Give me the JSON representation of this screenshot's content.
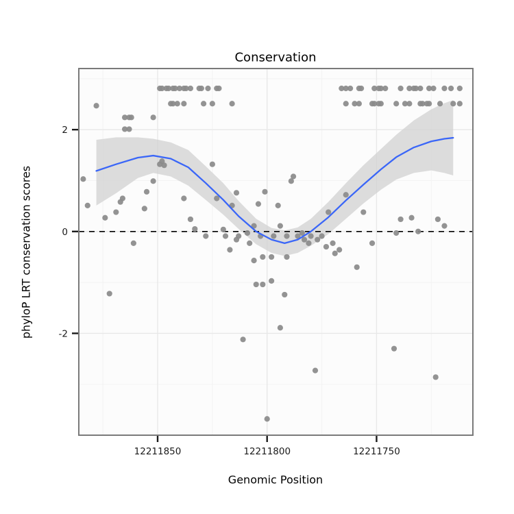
{
  "chart_data": {
    "type": "scatter",
    "title": "Conservation",
    "xlabel": "Genomic Position",
    "ylabel": "phyloP LRT conservation scores",
    "x_domain": [
      12211886,
      12211706
    ],
    "y_domain": [
      -4.0,
      3.2
    ],
    "x_ticks": [
      12211850,
      12211800,
      12211750
    ],
    "x_tick_labels": [
      "12211850",
      "12211800",
      "12211750"
    ],
    "x_minor_ticks": [
      12211875,
      12211825,
      12211775,
      12211725
    ],
    "y_ticks": [
      2,
      0,
      -2
    ],
    "y_tick_labels": [
      "2",
      "0",
      "-2"
    ],
    "y_minor_ticks": [
      -3,
      -1,
      1,
      3
    ],
    "hline": 0,
    "grid": true,
    "legend": "none",
    "colors": {
      "point": "#8a8a8a",
      "smooth_line": "#3a66f8",
      "ribbon": "#d2d2d2",
      "hline": "#000000",
      "panel_bg": "#fcfcfc",
      "grid_major": "#e8e8e8",
      "grid_minor": "#f3f3f3",
      "panel_border": "#7a7a7a",
      "tick": "#1a1a1a",
      "tick_label": "#1a1a1a"
    },
    "points": [
      [
        12211849,
        2.81
      ],
      [
        12211848,
        2.81
      ],
      [
        12211846,
        2.81
      ],
      [
        12211845,
        2.81
      ],
      [
        12211843,
        2.81
      ],
      [
        12211842,
        2.81
      ],
      [
        12211840,
        2.81
      ],
      [
        12211838,
        2.81
      ],
      [
        12211837,
        2.81
      ],
      [
        12211835,
        2.81
      ],
      [
        12211831,
        2.81
      ],
      [
        12211830,
        2.81
      ],
      [
        12211827,
        2.81
      ],
      [
        12211823,
        2.81
      ],
      [
        12211822,
        2.81
      ],
      [
        12211766,
        2.81
      ],
      [
        12211764,
        2.81
      ],
      [
        12211762,
        2.81
      ],
      [
        12211758,
        2.81
      ],
      [
        12211757,
        2.81
      ],
      [
        12211751,
        2.81
      ],
      [
        12211749,
        2.81
      ],
      [
        12211748,
        2.81
      ],
      [
        12211746,
        2.81
      ],
      [
        12211739,
        2.81
      ],
      [
        12211735,
        2.81
      ],
      [
        12211733,
        2.81
      ],
      [
        12211732,
        2.81
      ],
      [
        12211730,
        2.81
      ],
      [
        12211726,
        2.81
      ],
      [
        12211724,
        2.81
      ],
      [
        12211719,
        2.81
      ],
      [
        12211716,
        2.81
      ],
      [
        12211712,
        2.81
      ],
      [
        12211878,
        2.47
      ],
      [
        12211844,
        2.51
      ],
      [
        12211843,
        2.51
      ],
      [
        12211841,
        2.51
      ],
      [
        12211838,
        2.51
      ],
      [
        12211829,
        2.51
      ],
      [
        12211825,
        2.51
      ],
      [
        12211816,
        2.51
      ],
      [
        12211764,
        2.51
      ],
      [
        12211760,
        2.51
      ],
      [
        12211758,
        2.51
      ],
      [
        12211752,
        2.51
      ],
      [
        12211751,
        2.51
      ],
      [
        12211749,
        2.51
      ],
      [
        12211748,
        2.51
      ],
      [
        12211741,
        2.51
      ],
      [
        12211737,
        2.51
      ],
      [
        12211735,
        2.51
      ],
      [
        12211730,
        2.51
      ],
      [
        12211729,
        2.51
      ],
      [
        12211727,
        2.51
      ],
      [
        12211726,
        2.51
      ],
      [
        12211721,
        2.51
      ],
      [
        12211715,
        2.51
      ],
      [
        12211712,
        2.51
      ],
      [
        12211865,
        2.24
      ],
      [
        12211863,
        2.24
      ],
      [
        12211862,
        2.24
      ],
      [
        12211852,
        2.24
      ],
      [
        12211865,
        2.01
      ],
      [
        12211863,
        2.01
      ],
      [
        12211884,
        1.03
      ],
      [
        12211882,
        0.51
      ],
      [
        12211874,
        0.27
      ],
      [
        12211872,
        -1.22
      ],
      [
        12211869,
        0.38
      ],
      [
        12211867,
        0.58
      ],
      [
        12211866,
        0.65
      ],
      [
        12211861,
        -0.23
      ],
      [
        12211856,
        0.45
      ],
      [
        12211855,
        0.78
      ],
      [
        12211852,
        0.99
      ],
      [
        12211849,
        1.32
      ],
      [
        12211848,
        1.38
      ],
      [
        12211847,
        1.3
      ],
      [
        12211838,
        0.65
      ],
      [
        12211835,
        0.24
      ],
      [
        12211833,
        0.05
      ],
      [
        12211828,
        -0.09
      ],
      [
        12211825,
        1.32
      ],
      [
        12211823,
        0.65
      ],
      [
        12211820,
        0.04
      ],
      [
        12211819,
        -0.09
      ],
      [
        12211817,
        -0.36
      ],
      [
        12211816,
        0.51
      ],
      [
        12211814,
        0.76
      ],
      [
        12211814,
        -0.16
      ],
      [
        12211813,
        -0.09
      ],
      [
        12211811,
        -2.12
      ],
      [
        12211809,
        -0.03
      ],
      [
        12211808,
        -0.23
      ],
      [
        12211806,
        0.11
      ],
      [
        12211806,
        -0.57
      ],
      [
        12211805,
        -1.04
      ],
      [
        12211804,
        0.54
      ],
      [
        12211803,
        -0.09
      ],
      [
        12211802,
        -0.5
      ],
      [
        12211802,
        -1.04
      ],
      [
        12211801,
        0.78
      ],
      [
        12211800,
        -3.68
      ],
      [
        12211798,
        -0.5
      ],
      [
        12211798,
        -0.97
      ],
      [
        12211797,
        -0.09
      ],
      [
        12211795,
        0.51
      ],
      [
        12211794,
        0.11
      ],
      [
        12211794,
        -1.89
      ],
      [
        12211792,
        -1.24
      ],
      [
        12211791,
        -0.5
      ],
      [
        12211791,
        -0.09
      ],
      [
        12211789,
        0.99
      ],
      [
        12211788,
        1.08
      ],
      [
        12211786,
        -0.09
      ],
      [
        12211784,
        -0.03
      ],
      [
        12211783,
        -0.16
      ],
      [
        12211781,
        -0.23
      ],
      [
        12211780,
        -0.09
      ],
      [
        12211778,
        -2.73
      ],
      [
        12211777,
        -0.16
      ],
      [
        12211775,
        -0.09
      ],
      [
        12211773,
        -0.3
      ],
      [
        12211772,
        0.38
      ],
      [
        12211770,
        -0.23
      ],
      [
        12211769,
        -0.43
      ],
      [
        12211767,
        -0.36
      ],
      [
        12211764,
        0.72
      ],
      [
        12211759,
        -0.7
      ],
      [
        12211756,
        0.38
      ],
      [
        12211752,
        -0.23
      ],
      [
        12211742,
        -2.3
      ],
      [
        12211741,
        -0.03
      ],
      [
        12211739,
        0.24
      ],
      [
        12211734,
        0.27
      ],
      [
        12211731,
        0.0
      ],
      [
        12211723,
        -2.86
      ],
      [
        12211722,
        0.24
      ],
      [
        12211719,
        0.11
      ]
    ],
    "smooth": {
      "x": [
        12211878,
        12211869,
        12211859,
        12211852,
        12211844,
        12211836,
        12211828,
        12211820,
        12211813,
        12211805,
        12211798,
        12211792,
        12211786,
        12211780,
        12211772,
        12211764,
        12211756,
        12211748,
        12211741,
        12211733,
        12211725,
        12211719,
        12211715
      ],
      "y": [
        1.19,
        1.32,
        1.45,
        1.49,
        1.43,
        1.26,
        0.95,
        0.62,
        0.3,
        0.0,
        -0.16,
        -0.23,
        -0.16,
        0.0,
        0.28,
        0.61,
        0.92,
        1.22,
        1.46,
        1.65,
        1.77,
        1.82,
        1.84
      ],
      "lo": [
        0.51,
        0.75,
        1.05,
        1.15,
        1.08,
        0.9,
        0.62,
        0.33,
        0.05,
        -0.25,
        -0.42,
        -0.48,
        -0.42,
        -0.28,
        -0.05,
        0.25,
        0.55,
        0.82,
        1.02,
        1.15,
        1.2,
        1.15,
        1.1
      ],
      "hi": [
        1.8,
        1.85,
        1.85,
        1.82,
        1.75,
        1.6,
        1.28,
        0.95,
        0.6,
        0.25,
        0.07,
        0.02,
        0.08,
        0.25,
        0.58,
        0.95,
        1.3,
        1.62,
        1.9,
        2.18,
        2.4,
        2.52,
        2.58
      ]
    }
  }
}
